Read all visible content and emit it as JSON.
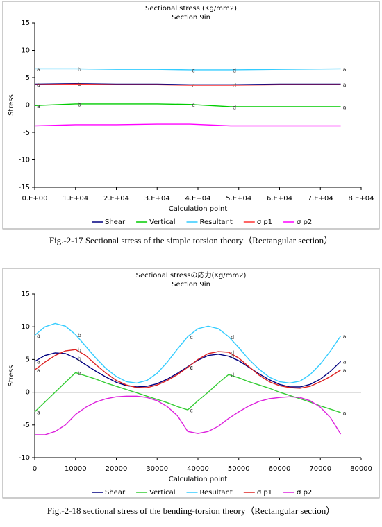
{
  "chart_data": [
    {
      "type": "line",
      "title": "Sectional stress (Kg/mm2)",
      "subtitle": "Section 9in",
      "x_label": "Calculation point",
      "y_label": "Stress",
      "caption": "Fig.-2-17 Sectional stress of the simple torsion theory（Rectangular section）",
      "x": [
        0,
        10000,
        20000,
        30000,
        38000,
        48000,
        60000,
        75000
      ],
      "xlim": [
        0,
        80000
      ],
      "xticks": [
        {
          "value": 0,
          "label": "0.E+00"
        },
        {
          "value": 10000,
          "label": "1.E+04"
        },
        {
          "value": 20000,
          "label": "2.E+04"
        },
        {
          "value": 30000,
          "label": "3.E+04"
        },
        {
          "value": 40000,
          "label": "4.E+04"
        },
        {
          "value": 50000,
          "label": "5.E+04"
        },
        {
          "value": 60000,
          "label": "6.E+04"
        },
        {
          "value": 70000,
          "label": "7.E+04"
        },
        {
          "value": 80000,
          "label": "8.E+04"
        }
      ],
      "ylim": [
        -15,
        15
      ],
      "yticks": [
        -15,
        -10,
        -5,
        0,
        5,
        10,
        15
      ],
      "series": [
        {
          "name": "Shear",
          "color": "#000080",
          "values": [
            3.8,
            3.9,
            3.8,
            3.8,
            3.7,
            3.7,
            3.8,
            3.8
          ],
          "point_labels": [
            "a",
            "b",
            null,
            null,
            "c",
            "d",
            null,
            "a"
          ]
        },
        {
          "name": "Vertical",
          "color": "#00cc00",
          "values": [
            -0.1,
            0.2,
            0.2,
            0.2,
            0.1,
            -0.3,
            -0.3,
            -0.3
          ],
          "point_labels": [
            "a",
            "b",
            null,
            null,
            "c",
            "d",
            null,
            "a"
          ]
        },
        {
          "name": "Resultant",
          "color": "#33ccff",
          "values": [
            6.6,
            6.6,
            6.5,
            6.5,
            6.4,
            6.4,
            6.5,
            6.6
          ],
          "point_labels": [
            "a",
            "b",
            null,
            null,
            "c",
            "d",
            null,
            "a"
          ]
        },
        {
          "name": "σ p1",
          "color": "#ff3333",
          "values": [
            3.7,
            3.8,
            3.7,
            3.7,
            3.6,
            3.6,
            3.7,
            3.7
          ]
        },
        {
          "name": "σ p2",
          "color": "#ff00ff",
          "values": [
            -3.8,
            -3.6,
            -3.6,
            -3.5,
            -3.5,
            -3.8,
            -3.8,
            -3.8
          ]
        }
      ]
    },
    {
      "type": "line",
      "title": "Sectional stressの応力(Kg/mm2)",
      "subtitle": "Section 9in",
      "x_label": "Calculation point",
      "y_label": "Stress",
      "caption": "Fig.-2-18 sectional stress of the bending-torsion theory（Rectangular section）",
      "x": [
        0,
        2500,
        5000,
        7500,
        10000,
        12500,
        15000,
        17500,
        20000,
        22500,
        25000,
        27500,
        30000,
        32500,
        35000,
        37500,
        40000,
        42500,
        45000,
        47500,
        50000,
        52500,
        55000,
        57500,
        60000,
        62500,
        65000,
        67500,
        70000,
        72500,
        75000
      ],
      "xlim": [
        0,
        80000
      ],
      "xticks": [
        0,
        10000,
        20000,
        30000,
        40000,
        50000,
        60000,
        70000,
        80000
      ],
      "ylim": [
        -10,
        15
      ],
      "yticks": [
        -10,
        -5,
        0,
        5,
        10,
        15
      ],
      "series": [
        {
          "name": "Shear",
          "color": "#000080",
          "values": [
            4.7,
            5.6,
            6.0,
            5.9,
            5.2,
            4.2,
            3.2,
            2.3,
            1.5,
            1.0,
            0.8,
            0.9,
            1.3,
            2.0,
            2.9,
            3.9,
            4.9,
            5.6,
            5.8,
            5.5,
            4.8,
            3.8,
            2.8,
            1.9,
            1.2,
            0.8,
            0.8,
            1.2,
            2.0,
            3.2,
            4.7
          ],
          "point_labels": [
            "a",
            null,
            null,
            null,
            "b",
            null,
            null,
            null,
            null,
            null,
            null,
            null,
            null,
            null,
            null,
            "c",
            null,
            null,
            null,
            "d",
            null,
            null,
            null,
            null,
            null,
            null,
            null,
            null,
            null,
            null,
            "a"
          ]
        },
        {
          "name": "Vertical",
          "color": "#33cc33",
          "values": [
            -3.0,
            -1.5,
            0.0,
            1.5,
            3.0,
            2.5,
            2.0,
            1.4,
            0.9,
            0.4,
            -0.1,
            -0.6,
            -1.1,
            -1.6,
            -2.2,
            -2.7,
            -1.3,
            0.0,
            1.4,
            2.7,
            2.2,
            1.6,
            1.1,
            0.6,
            0.0,
            -0.5,
            -1.0,
            -1.5,
            -2.1,
            -2.6,
            -3.1
          ],
          "point_labels": [
            "a",
            null,
            null,
            null,
            "b",
            null,
            null,
            null,
            null,
            null,
            null,
            null,
            null,
            null,
            null,
            "c",
            null,
            null,
            null,
            "d",
            null,
            null,
            null,
            null,
            null,
            null,
            null,
            null,
            null,
            null,
            "a"
          ]
        },
        {
          "name": "Resultant",
          "color": "#33ccff",
          "values": [
            8.7,
            10.0,
            10.5,
            10.1,
            8.8,
            7.0,
            5.2,
            3.6,
            2.4,
            1.6,
            1.4,
            1.8,
            2.9,
            4.6,
            6.6,
            8.5,
            9.7,
            10.1,
            9.7,
            8.5,
            6.8,
            5.0,
            3.5,
            2.3,
            1.6,
            1.4,
            1.7,
            2.7,
            4.3,
            6.3,
            8.6
          ],
          "point_labels": [
            "a",
            null,
            null,
            null,
            "b",
            null,
            null,
            null,
            null,
            null,
            null,
            null,
            null,
            null,
            null,
            "c",
            null,
            null,
            null,
            "d",
            null,
            null,
            null,
            null,
            null,
            null,
            null,
            null,
            null,
            null,
            "a"
          ]
        },
        {
          "name": "σ p1",
          "color": "#dd2222",
          "values": [
            3.4,
            4.6,
            5.6,
            6.3,
            6.5,
            5.6,
            4.2,
            2.9,
            1.8,
            1.1,
            0.7,
            0.7,
            1.1,
            1.8,
            2.7,
            3.8,
            5.0,
            5.9,
            6.2,
            6.1,
            5.2,
            3.9,
            2.6,
            1.6,
            1.0,
            0.7,
            0.6,
            0.9,
            1.6,
            2.4,
            3.4
          ],
          "point_labels": [
            "a",
            null,
            null,
            null,
            "b",
            null,
            null,
            null,
            null,
            null,
            null,
            null,
            null,
            null,
            null,
            "c",
            null,
            null,
            null,
            "d",
            null,
            null,
            null,
            null,
            null,
            null,
            null,
            null,
            null,
            null,
            "a"
          ]
        },
        {
          "name": "σ p2",
          "color": "#dd22dd",
          "values": [
            -6.5,
            -6.5,
            -6.0,
            -5.0,
            -3.4,
            -2.3,
            -1.5,
            -1.0,
            -0.7,
            -0.6,
            -0.6,
            -0.8,
            -1.3,
            -2.2,
            -3.6,
            -6.0,
            -6.3,
            -6.0,
            -5.2,
            -4.0,
            -3.0,
            -2.1,
            -1.4,
            -1.0,
            -0.8,
            -0.7,
            -0.8,
            -1.3,
            -2.3,
            -3.9,
            -6.4
          ]
        }
      ]
    }
  ]
}
